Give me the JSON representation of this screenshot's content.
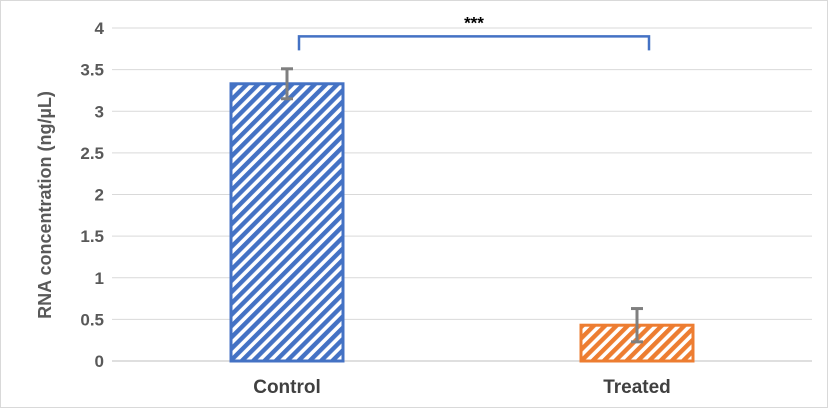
{
  "chart_data": {
    "type": "bar",
    "categories": [
      "Control",
      "Treated"
    ],
    "values": [
      3.33,
      0.43
    ],
    "error": [
      0.18,
      0.2
    ],
    "ylabel": "RNA concentration (ng/µL)",
    "xlabel": "",
    "ylim": [
      0,
      4
    ],
    "yticks": [
      "0",
      "0.5",
      "1",
      "1.5",
      "2",
      "2.5",
      "3",
      "3.5",
      "4"
    ],
    "grid": true,
    "legend": "none",
    "significance": {
      "label": "***",
      "between": [
        "Control",
        "Treated"
      ],
      "y": 3.9
    },
    "colors": {
      "bars": [
        "#4472C4",
        "#ED7D31"
      ],
      "grid": "#D9D9D9",
      "error_bar": "#7F7F7F",
      "bracket": "#4472C4"
    },
    "pattern": "diagonal-stripes"
  }
}
